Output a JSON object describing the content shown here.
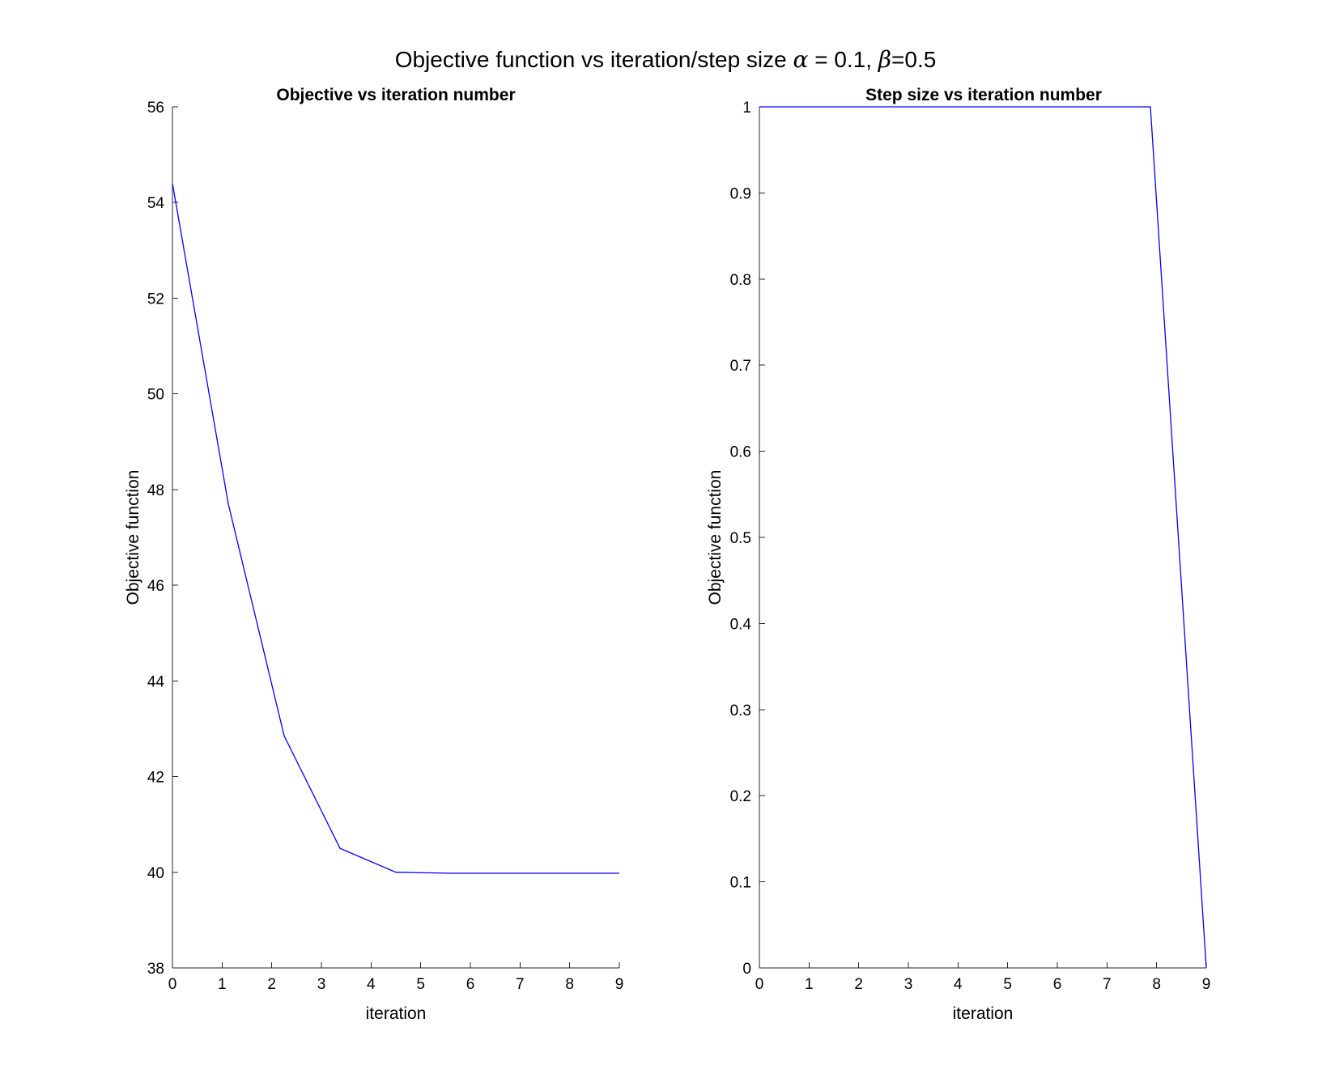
{
  "figure": {
    "suptitle_prefix": "Objective function vs iteration/step size ",
    "alpha_symbol": "α",
    "alpha_text": " = 0.1, ",
    "beta_symbol": "β",
    "beta_text": "=0.5"
  },
  "chart_data": [
    {
      "type": "line",
      "title": "Objective vs iteration number",
      "xlabel": "iteration",
      "ylabel": "Objective function",
      "xlim": [
        0,
        9
      ],
      "ylim": [
        38,
        56
      ],
      "xticks": [
        0,
        1,
        2,
        3,
        4,
        5,
        6,
        7,
        8,
        9
      ],
      "yticks": [
        38,
        40,
        42,
        44,
        46,
        48,
        50,
        52,
        54,
        56
      ],
      "ytick_labels": [
        "38",
        "40",
        "42",
        "44",
        "46",
        "48",
        "50",
        "52",
        "54",
        "56"
      ],
      "series": [
        {
          "name": "objective",
          "color": "#0000ff",
          "x": [
            0,
            1.125,
            2.25,
            3.375,
            4.5,
            5.625,
            6.75,
            7.875,
            9
          ],
          "y": [
            54.4,
            47.7,
            42.85,
            40.5,
            40.0,
            39.98,
            39.98,
            39.98,
            39.98
          ]
        }
      ]
    },
    {
      "type": "line",
      "title": "Step size vs iteration number",
      "xlabel": "iteration",
      "ylabel": "Objective function",
      "xlim": [
        0,
        9
      ],
      "ylim": [
        0,
        1
      ],
      "xticks": [
        0,
        1,
        2,
        3,
        4,
        5,
        6,
        7,
        8,
        9
      ],
      "yticks": [
        0,
        0.1,
        0.2,
        0.3,
        0.4,
        0.5,
        0.6,
        0.7,
        0.8,
        0.9,
        1
      ],
      "ytick_labels": [
        "0",
        "0.1",
        "0.2",
        "0.3",
        "0.4",
        "0.5",
        "0.6",
        "0.7",
        "0.8",
        "0.9",
        "1"
      ],
      "series": [
        {
          "name": "step size",
          "color": "#0000ff",
          "x": [
            0,
            1.125,
            2.25,
            3.375,
            4.5,
            5.625,
            6.75,
            7.875,
            9
          ],
          "y": [
            1,
            1,
            1,
            1,
            1,
            1,
            1,
            1,
            0
          ]
        }
      ]
    }
  ]
}
